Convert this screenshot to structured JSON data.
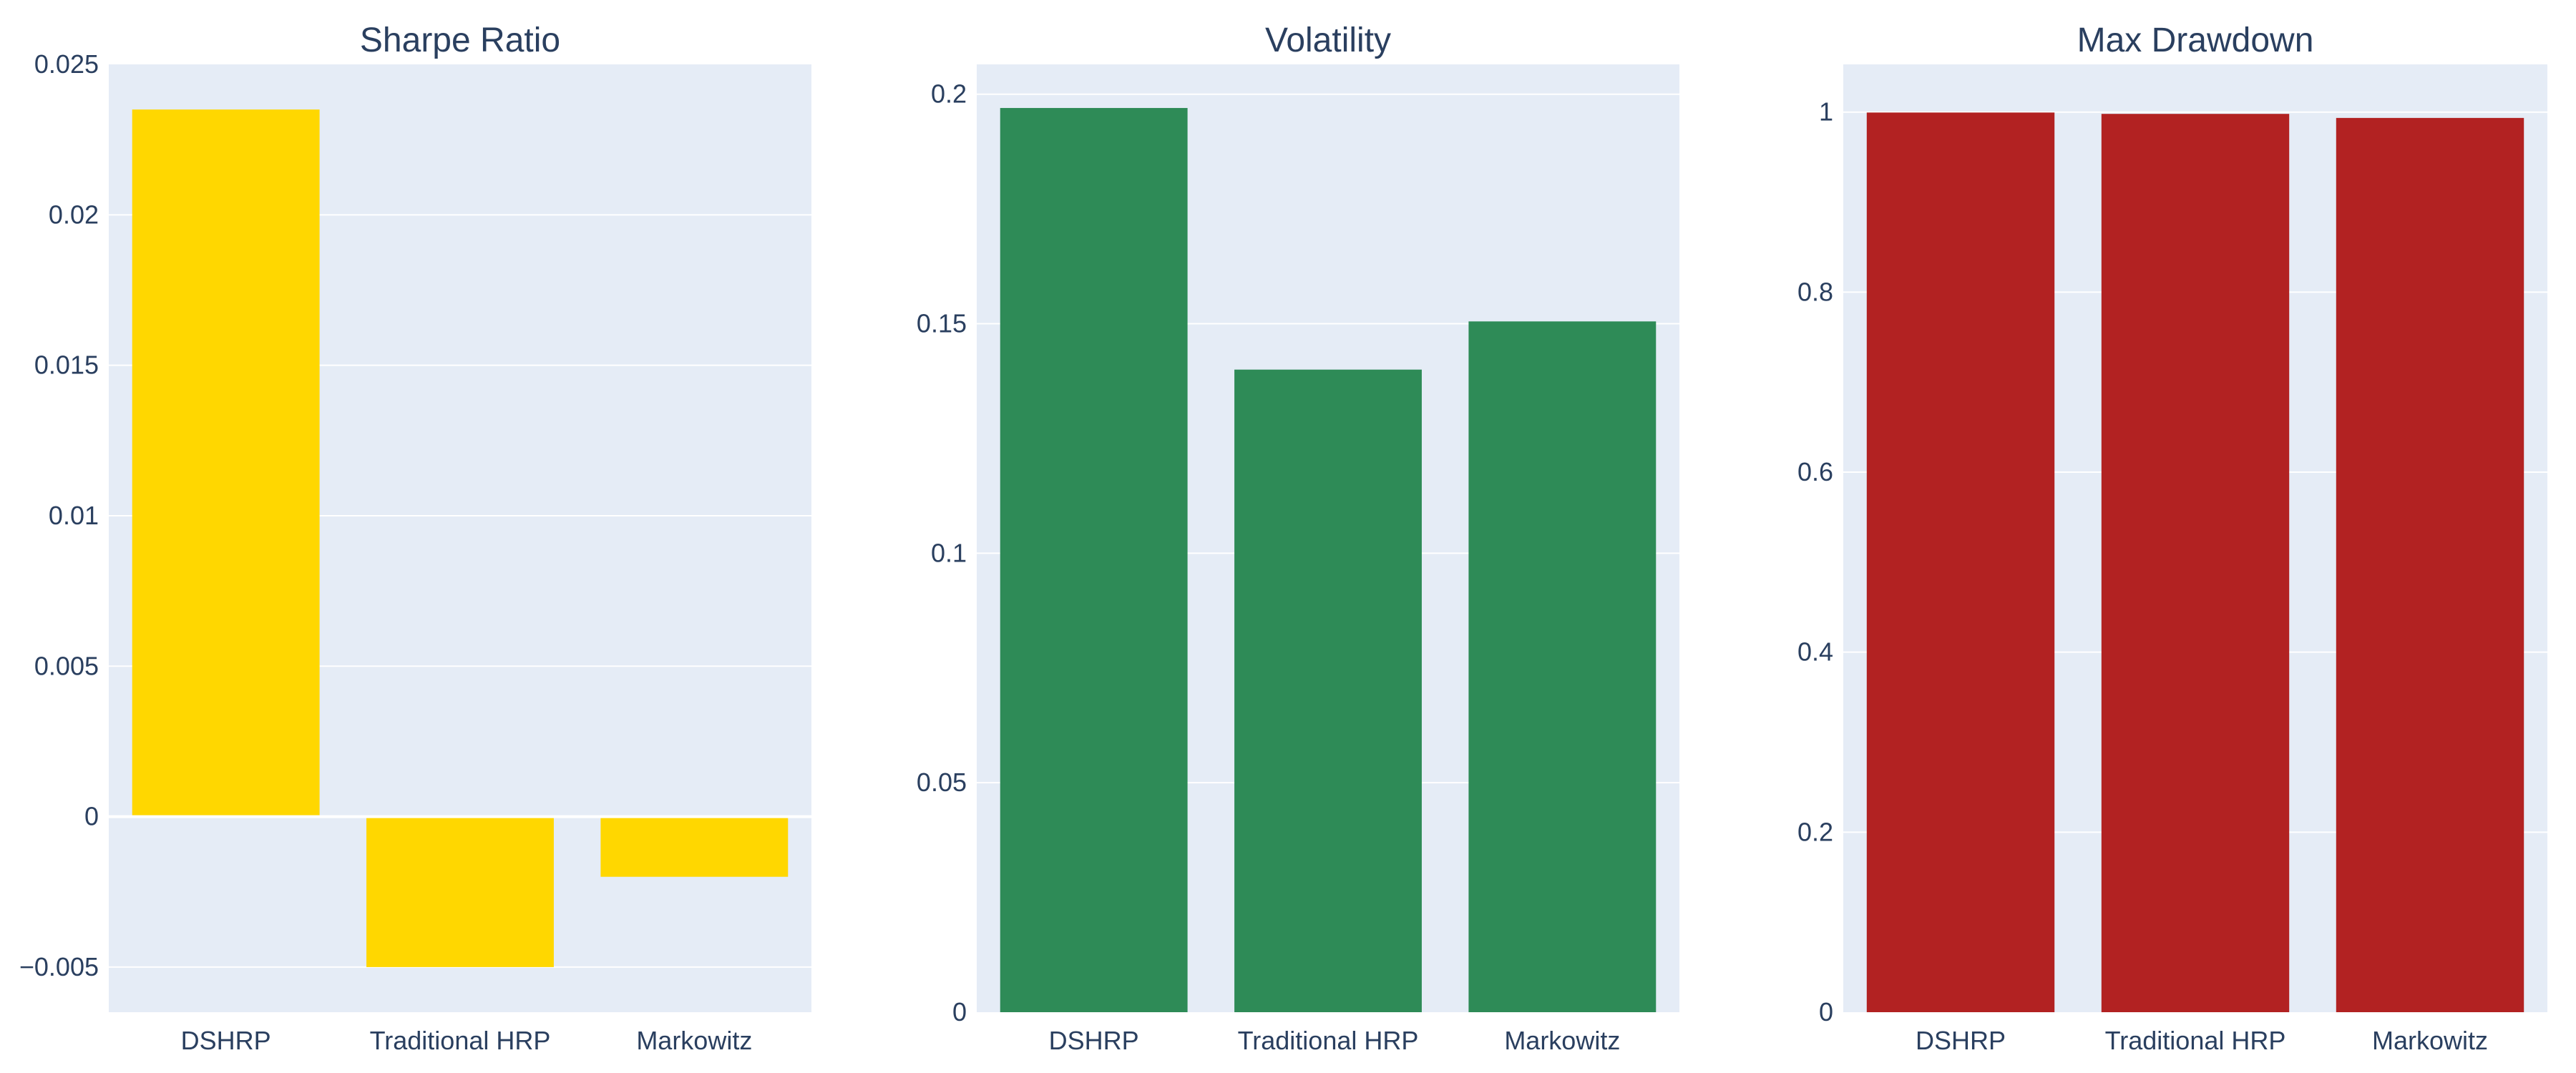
{
  "chart_data": [
    {
      "type": "bar",
      "title": "Sharpe Ratio",
      "categories": [
        "DSHRP",
        "Traditional HRP",
        "Markowitz"
      ],
      "values": [
        0.0235,
        -0.005,
        -0.002
      ],
      "ylim": [
        -0.0065,
        0.025
      ],
      "yticks": [
        -0.005,
        0,
        0.005,
        0.01,
        0.015,
        0.02,
        0.025
      ],
      "ytick_labels": [
        "−0.005",
        "0",
        "0.005",
        "0.01",
        "0.015",
        "0.02",
        "0.025"
      ],
      "color": "#FFD700",
      "grid": true
    },
    {
      "type": "bar",
      "title": "Volatility",
      "categories": [
        "DSHRP",
        "Traditional HRP",
        "Markowitz"
      ],
      "values": [
        0.197,
        0.14,
        0.1505
      ],
      "ylim": [
        0,
        0.2065
      ],
      "yticks": [
        0,
        0.05,
        0.1,
        0.15,
        0.2
      ],
      "ytick_labels": [
        "0",
        "0.05",
        "0.1",
        "0.15",
        "0.2"
      ],
      "color": "#2E8B57",
      "grid": true
    },
    {
      "type": "bar",
      "title": "Max Drawdown",
      "categories": [
        "DSHRP",
        "Traditional HRP",
        "Markowitz"
      ],
      "values": [
        0.9995,
        0.998,
        0.9935
      ],
      "ylim": [
        0,
        1.053
      ],
      "yticks": [
        0,
        0.2,
        0.4,
        0.6,
        0.8,
        1
      ],
      "ytick_labels": [
        "0",
        "0.2",
        "0.4",
        "0.6",
        "0.8",
        "1"
      ],
      "color": "#B22222",
      "grid": true
    }
  ],
  "style": {
    "plot_background": "#E5ECF6",
    "grid_color": "#FFFFFF",
    "text_color": "#2a3f5f"
  }
}
